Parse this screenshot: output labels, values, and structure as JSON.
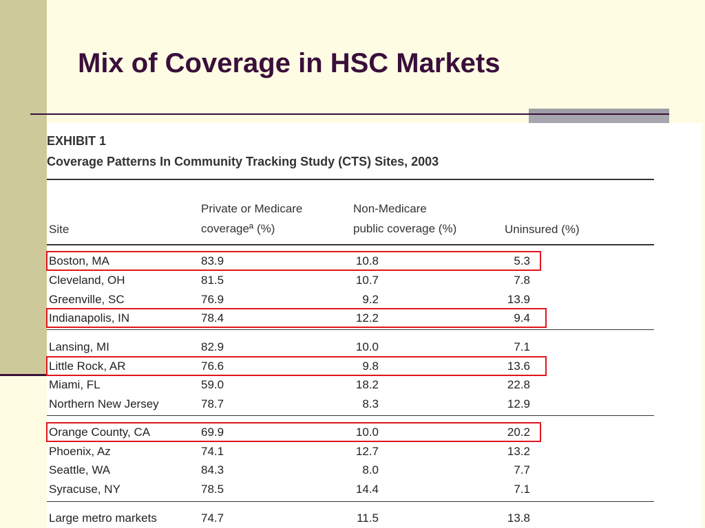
{
  "slide": {
    "title": "Mix of Coverage in HSC Markets"
  },
  "exhibit": {
    "heading": "EXHIBIT 1",
    "subheading": "Coverage Patterns In Community Tracking Study (CTS) Sites, 2003",
    "columns": {
      "site": "Site",
      "private_line1": "Private or Medicare",
      "private_line2": "coverageª (%)",
      "public_line1": "Non-Medicare",
      "public_line2": "public coverage (%)",
      "uninsured": "Uninsured (%)"
    },
    "rows": [
      {
        "site": "Boston, MA",
        "private": "83.9",
        "public": "10.8",
        "uninsured": "5.3",
        "highlighted": true
      },
      {
        "site": "Cleveland, OH",
        "private": "81.5",
        "public": "10.7",
        "uninsured": "7.8",
        "highlighted": false
      },
      {
        "site": "Greenville, SC",
        "private": "76.9",
        "public": "9.2",
        "uninsured": "13.9",
        "highlighted": false
      },
      {
        "site": "Indianapolis, IN",
        "private": "78.4",
        "public": "12.2",
        "uninsured": "9.4",
        "highlighted": true
      },
      {
        "site": "Lansing, MI",
        "private": "82.9",
        "public": "10.0",
        "uninsured": "7.1",
        "highlighted": false
      },
      {
        "site": "Little Rock, AR",
        "private": "76.6",
        "public": "9.8",
        "uninsured": "13.6",
        "highlighted": true
      },
      {
        "site": "Miami, FL",
        "private": "59.0",
        "public": "18.2",
        "uninsured": "22.8",
        "highlighted": false
      },
      {
        "site": "Northern New Jersey",
        "private": "78.7",
        "public": "8.3",
        "uninsured": "12.9",
        "highlighted": false
      },
      {
        "site": "Orange County, CA",
        "private": "69.9",
        "public": "10.0",
        "uninsured": "20.2",
        "highlighted": true
      },
      {
        "site": "Phoenix, Az",
        "private": "74.1",
        "public": "12.7",
        "uninsured": "13.2",
        "highlighted": false
      },
      {
        "site": "Seattle, WA",
        "private": "84.3",
        "public": "8.0",
        "uninsured": "7.7",
        "highlighted": false
      },
      {
        "site": "Syracuse, NY",
        "private": "78.5",
        "public": "14.4",
        "uninsured": "7.1",
        "highlighted": false
      },
      {
        "site": "Large metro markets",
        "private": "74.7",
        "public": "11.5",
        "uninsured": "13.8",
        "highlighted": false
      }
    ]
  },
  "colors": {
    "background": "#fefde4",
    "band": "#cdc99b",
    "title": "#3a0e3a",
    "highlight": "#e0141c"
  }
}
